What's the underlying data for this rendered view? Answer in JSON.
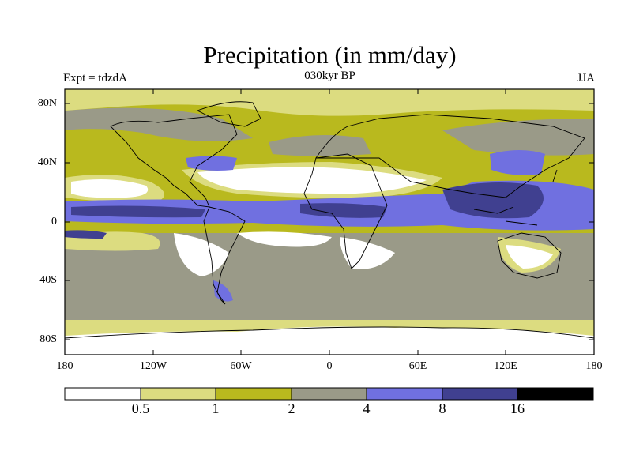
{
  "title": "Precipitation (in mm/day)",
  "left_label": "Expt = tdzdA",
  "center_label": "030kyr BP",
  "right_label": "JJA",
  "y_ticks": [
    "80N",
    "40N",
    "0",
    "40S",
    "80S"
  ],
  "x_ticks": [
    "180",
    "120W",
    "60W",
    "0",
    "60E",
    "120E",
    "180"
  ],
  "colorbar": {
    "labels": [
      "0.5",
      "1",
      "2",
      "4",
      "8",
      "16"
    ],
    "colors": [
      "#ffffff",
      "#dcdc80",
      "#b9b91e",
      "#9a9a88",
      "#7070e0",
      "#404090",
      "#000000"
    ]
  }
}
